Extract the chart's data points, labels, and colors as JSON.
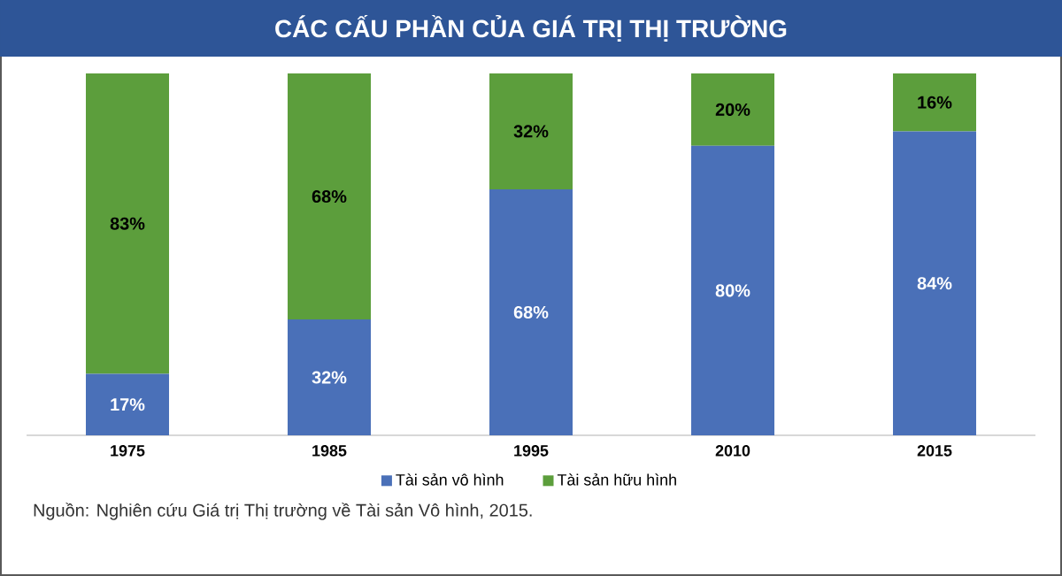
{
  "chart_data": {
    "type": "bar",
    "title": "CÁC CẤU PHẦN CỦA GIÁ TRỊ THỊ TRƯỜNG",
    "categories": [
      "1975",
      "1985",
      "1995",
      "2010",
      "2015"
    ],
    "stacked": true,
    "legend": "bottom",
    "series": [
      {
        "name": "Tài sản vô hình",
        "color": "#4a70b8",
        "values": [
          17,
          32,
          68,
          80,
          84
        ],
        "value_labels": [
          "17%",
          "32%",
          "68%",
          "80%",
          "84%"
        ]
      },
      {
        "name": "Tài sản hữu hình",
        "color": "#5c9e3c",
        "values": [
          83,
          68,
          32,
          20,
          16
        ],
        "value_labels": [
          "83%",
          "68%",
          "32%",
          "20%",
          "16%"
        ]
      }
    ],
    "annotations": [
      "Nguồn: Nghiên cứu Giá trị Thị trường về Tài sản Vô hình, 2015."
    ]
  }
}
